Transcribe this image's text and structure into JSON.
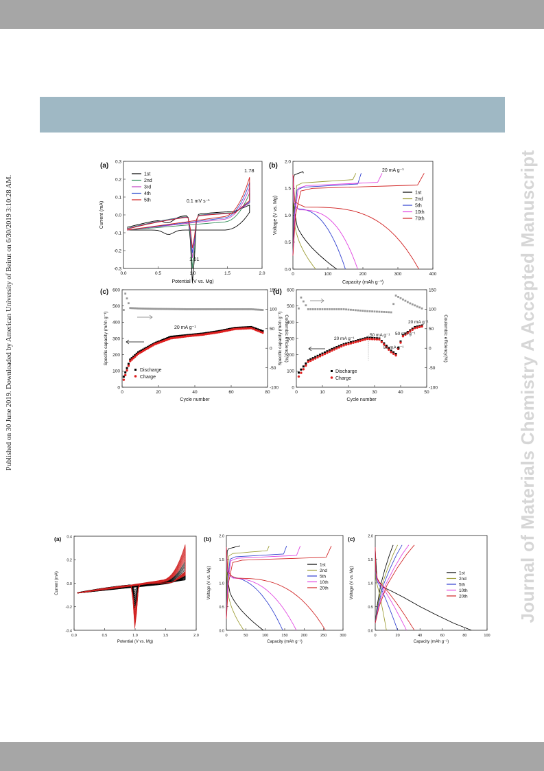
{
  "page": {
    "sidebar_text": "Published on 30 June 2019. Downloaded by American University of Beirut on 6/30/2019 3:10:28 AM.",
    "watermark": "Journal of Materials Chemistry A Accepted Manuscript"
  },
  "figure1": {
    "a": {
      "panel_label": "(a)",
      "xlabel": "Potential (V vs. Mg)",
      "ylabel": "Current (mA)",
      "scan_rate": "0.1 mV s⁻¹",
      "peak_high": "1.78",
      "peak_low": "1.01",
      "xticks": [
        "0.0",
        "0.5",
        "1.0",
        "1.5",
        "2.0"
      ],
      "yticks": [
        "-0.3",
        "-0.2",
        "-0.1",
        "0.0",
        "0.1",
        "0.2",
        "0.3"
      ],
      "legend": [
        "1st",
        "2nd",
        "3rd",
        "4th",
        "5th"
      ],
      "colors": [
        "#000000",
        "#2e8b57",
        "#c040c0",
        "#3050d0",
        "#d02020"
      ]
    },
    "b": {
      "panel_label": "(b)",
      "xlabel": "Capacity (mAh g⁻¹)",
      "ylabel": "Voltage (V vs. Mg)",
      "current": "20 mA g⁻¹",
      "xticks": [
        "0",
        "100",
        "200",
        "300",
        "400"
      ],
      "yticks": [
        "0.0",
        "0.5",
        "1.0",
        "1.5",
        "2.0"
      ],
      "legend": [
        "1st",
        "2nd",
        "5th",
        "10th",
        "70th"
      ],
      "colors": [
        "#000000",
        "#9a9a30",
        "#3040d0",
        "#e040e0",
        "#d02020"
      ]
    },
    "c": {
      "panel_label": "(c)",
      "xlabel": "Cycle number",
      "ylabel_left": "Specific capacity (mAh g⁻¹)",
      "ylabel_right": "Coulombic efficiency(%)",
      "annotation": "20 mA g⁻¹",
      "xticks": [
        "0",
        "20",
        "40",
        "60",
        "80"
      ],
      "yticks_left": [
        "0",
        "100",
        "200",
        "300",
        "400",
        "500",
        "600"
      ],
      "yticks_right": [
        "-100",
        "-50",
        "0",
        "50",
        "100",
        "150"
      ],
      "legend": [
        "Discharge",
        "Charge"
      ]
    },
    "d": {
      "panel_label": "(d)",
      "xlabel": "Cycle number",
      "ylabel_left": "Specific capacity (mAh g⁻¹)",
      "ylabel_right": "Coulombic efficiency(%)",
      "annotations": [
        "20 mA g⁻¹",
        "50 mA g⁻¹",
        "80 mA g⁻¹",
        "50 mA g⁻¹",
        "20 mA g⁻¹"
      ],
      "xticks": [
        "0",
        "10",
        "20",
        "30",
        "40",
        "50"
      ],
      "yticks_left": [
        "0",
        "100",
        "200",
        "300",
        "400",
        "500",
        "600"
      ],
      "yticks_right": [
        "-100",
        "-50",
        "0",
        "50",
        "100",
        "150"
      ],
      "legend": [
        "Discharge",
        "Charge"
      ]
    }
  },
  "figure2": {
    "a": {
      "panel_label": "(a)",
      "xlabel": "Potential (V vs. Mg)",
      "ylabel": "Current (mA)",
      "xticks": [
        "0.0",
        "0.5",
        "1.0",
        "1.5",
        "2.0"
      ],
      "yticks": [
        "-0.4",
        "-0.2",
        "0.0",
        "0.2",
        "0.4"
      ]
    },
    "b": {
      "panel_label": "(b)",
      "xlabel": "Capacity (mAh g⁻¹)",
      "ylabel": "Voltage (V vs. Mg)",
      "xticks": [
        "0",
        "50",
        "100",
        "150",
        "200",
        "250",
        "300"
      ],
      "yticks": [
        "0.0",
        "0.5",
        "1.0",
        "1.5",
        "2.0"
      ],
      "legend": [
        "1st",
        "2nd",
        "5th",
        "10th",
        "20th"
      ],
      "colors": [
        "#000000",
        "#9a9a30",
        "#3040d0",
        "#e040e0",
        "#d02020"
      ]
    },
    "c": {
      "panel_label": "(c)",
      "xlabel": "Capacity (mAh g⁻¹)",
      "ylabel": "Voltage (V vs. Mg)",
      "xticks": [
        "0",
        "20",
        "40",
        "60",
        "80",
        "100"
      ],
      "yticks": [
        "0.0",
        "0.5",
        "1.0",
        "1.5",
        "2.0"
      ],
      "legend": [
        "1st",
        "2nd",
        "5th",
        "10th",
        "20th"
      ],
      "colors": [
        "#000000",
        "#9a9a30",
        "#3040d0",
        "#e040e0",
        "#d02020"
      ]
    }
  },
  "chart_data": [
    {
      "type": "line",
      "panel": "1a",
      "x_range": [
        0,
        2.0
      ],
      "ylim": [
        -0.3,
        0.3
      ],
      "series": [
        {
          "name": "1st"
        },
        {
          "name": "2nd"
        },
        {
          "name": "3rd"
        },
        {
          "name": "4th"
        },
        {
          "name": "5th"
        }
      ],
      "peaks": {
        "oxidation_V": 1.78,
        "reduction_V": 1.01
      }
    },
    {
      "type": "line",
      "panel": "1b",
      "xlim": [
        0,
        400
      ],
      "ylim": [
        0,
        2.0
      ],
      "series": [
        {
          "name": "1st",
          "discharge_capacity": 125,
          "charge_capacity": 30
        },
        {
          "name": "2nd",
          "discharge_capacity": 65,
          "charge_capacity": 180
        },
        {
          "name": "5th",
          "discharge_capacity": 150,
          "charge_capacity": 195
        },
        {
          "name": "10th",
          "discharge_capacity": 185,
          "charge_capacity": 255
        },
        {
          "name": "70th",
          "discharge_capacity": 360,
          "charge_capacity": 375
        }
      ]
    },
    {
      "type": "scatter",
      "panel": "1c",
      "xlim": [
        0,
        90
      ],
      "ylim": [
        0,
        600
      ],
      "ylim_right": [
        -100,
        150
      ],
      "series": [
        {
          "name": "Discharge",
          "x": [
            1,
            5,
            10,
            20,
            30,
            40,
            50,
            60,
            70,
            80,
            87
          ],
          "y": [
            65,
            170,
            215,
            270,
            310,
            320,
            330,
            345,
            365,
            370,
            345
          ]
        },
        {
          "name": "Charge",
          "x": [
            1,
            5,
            10,
            20,
            30,
            40,
            50,
            60,
            70,
            80,
            87
          ],
          "y": [
            50,
            165,
            210,
            268,
            305,
            318,
            328,
            343,
            363,
            368,
            340
          ]
        },
        {
          "name": "Coulombic efficiency",
          "x": [
            2,
            5,
            10,
            20,
            40,
            60,
            80,
            87
          ],
          "y": [
            140,
            103,
            102,
            101,
            100,
            100,
            100,
            98
          ]
        }
      ]
    },
    {
      "type": "scatter",
      "panel": "1d",
      "xlim": [
        0,
        55
      ],
      "ylim": [
        0,
        600
      ],
      "ylim_right": [
        -100,
        150
      ],
      "series": [
        {
          "name": "Discharge",
          "x": [
            1,
            5,
            10,
            15,
            20,
            25,
            30,
            35,
            40,
            42,
            45,
            50,
            53
          ],
          "y": [
            90,
            165,
            200,
            235,
            265,
            285,
            305,
            300,
            225,
            205,
            320,
            370,
            380
          ]
        },
        {
          "name": "Charge",
          "x": [
            1,
            5,
            10,
            15,
            20,
            25,
            30,
            35,
            40,
            42,
            45,
            50,
            53
          ],
          "y": [
            70,
            160,
            195,
            230,
            262,
            282,
            302,
            298,
            220,
            200,
            318,
            368,
            378
          ]
        },
        {
          "name": "Coulombic efficiency",
          "x": [
            2,
            5,
            10,
            20,
            30,
            40,
            42,
            48,
            53
          ],
          "y": [
            130,
            100,
            100,
            100,
            95,
            92,
            135,
            115,
            102
          ]
        }
      ]
    },
    {
      "type": "line",
      "panel": "2a",
      "xlim": [
        0,
        2.0
      ],
      "ylim": [
        -0.4,
        0.4
      ]
    },
    {
      "type": "line",
      "panel": "2b",
      "xlim": [
        0,
        300
      ],
      "ylim": [
        0,
        2.0
      ],
      "series": [
        {
          "name": "1st",
          "discharge_capacity": 95,
          "charge_capacity": 35
        },
        {
          "name": "2nd",
          "discharge_capacity": 45,
          "charge_capacity": 110
        },
        {
          "name": "5th",
          "discharge_capacity": 145,
          "charge_capacity": 155
        },
        {
          "name": "10th",
          "discharge_capacity": 180,
          "charge_capacity": 190
        },
        {
          "name": "20th",
          "discharge_capacity": 255,
          "charge_capacity": 270
        }
      ]
    },
    {
      "type": "line",
      "panel": "2c",
      "xlim": [
        0,
        100
      ],
      "ylim": [
        0,
        2.0
      ],
      "series": [
        {
          "name": "1st",
          "discharge_capacity": 86,
          "charge_capacity": 16
        },
        {
          "name": "2nd",
          "discharge_capacity": 10,
          "charge_capacity": 20
        },
        {
          "name": "5th",
          "discharge_capacity": 20,
          "charge_capacity": 24
        },
        {
          "name": "10th",
          "discharge_capacity": 28,
          "charge_capacity": 30
        },
        {
          "name": "20th",
          "discharge_capacity": 35,
          "charge_capacity": 35
        }
      ]
    }
  ]
}
